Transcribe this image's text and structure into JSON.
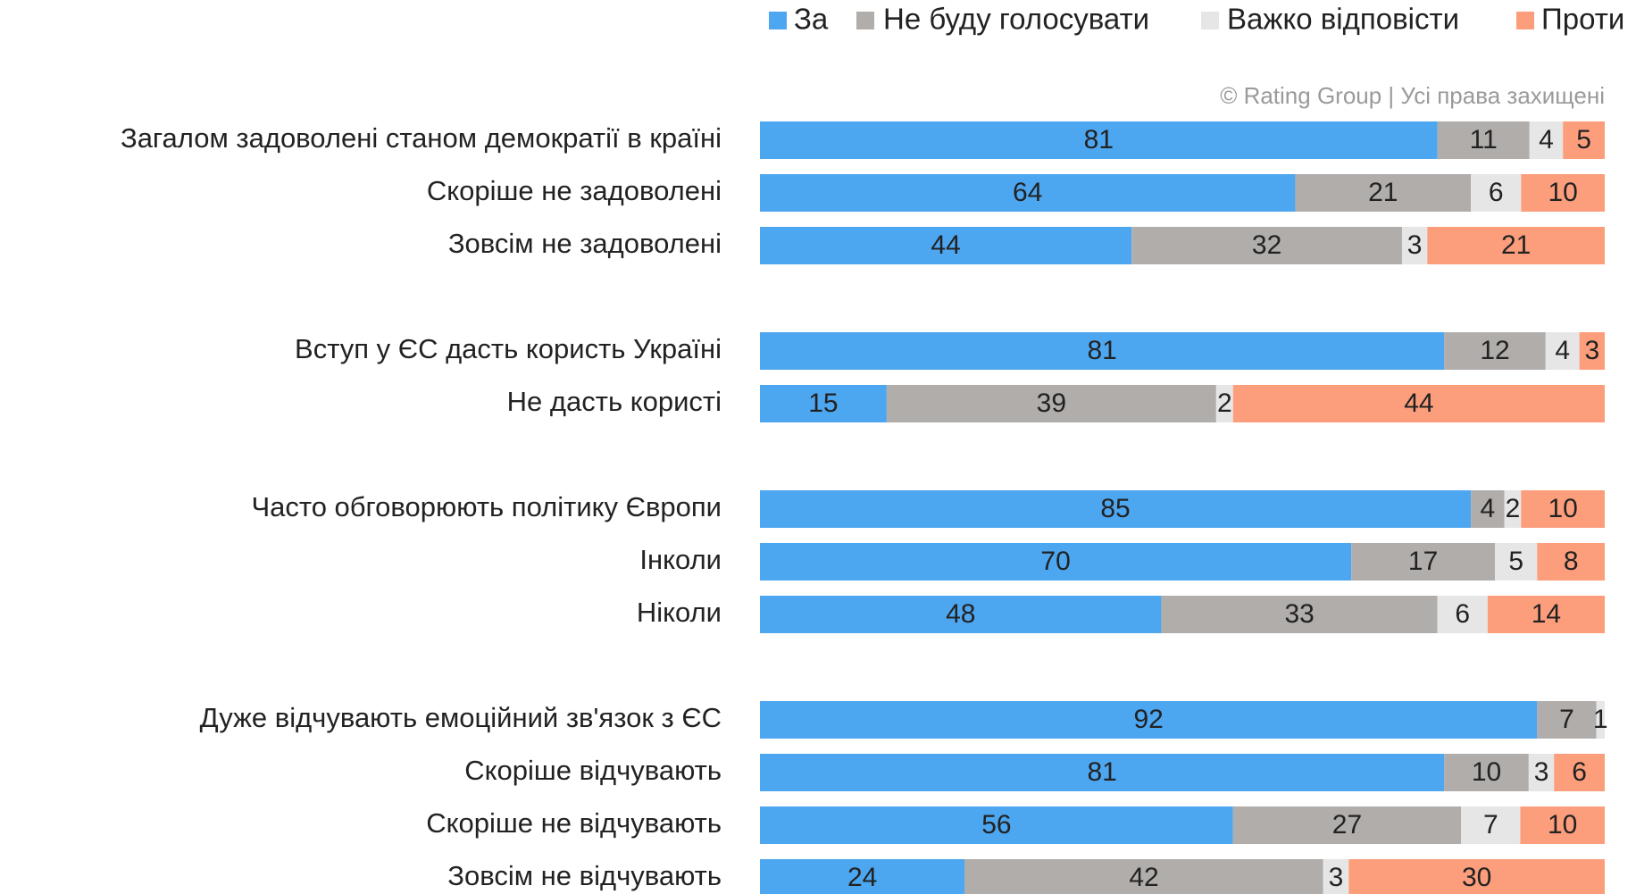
{
  "chart_data": {
    "type": "stacked-bar-horizontal",
    "source": "© Rating Group | Усі права захищені",
    "categories": [
      "Загалом задоволені станом демократії в країні",
      "Скоріше не задоволені",
      "Зовсім не задоволені",
      null,
      "Вступ у ЄС дасть користь Україні",
      "Не дасть користі",
      null,
      "Часто обговорюють політику Європи",
      "Інколи",
      "Ніколи",
      null,
      "Дуже відчувають  емоційний зв'язок з ЄС",
      "Скоріше відчувають",
      "Скоріше не відчувають",
      "Зовсім не відчувають"
    ],
    "series": [
      {
        "name": "За",
        "color": "#4da6f0",
        "values": [
          81,
          64,
          44,
          null,
          81,
          15,
          null,
          85,
          70,
          48,
          null,
          92,
          81,
          56,
          24
        ]
      },
      {
        "name": "Не буду голосувати",
        "color": "#b0adab",
        "values": [
          11,
          21,
          32,
          null,
          12,
          39,
          null,
          4,
          17,
          33,
          null,
          7,
          10,
          27,
          42
        ]
      },
      {
        "name": "Важко відповісти",
        "color": "#e6e6e6",
        "values": [
          4,
          6,
          3,
          null,
          4,
          2,
          null,
          2,
          5,
          6,
          null,
          1,
          3,
          7,
          3
        ]
      },
      {
        "name": "Проти",
        "color": "#fc9e7c",
        "values": [
          5,
          10,
          21,
          null,
          3,
          44,
          null,
          10,
          8,
          14,
          null,
          null,
          6,
          10,
          30
        ]
      }
    ]
  }
}
